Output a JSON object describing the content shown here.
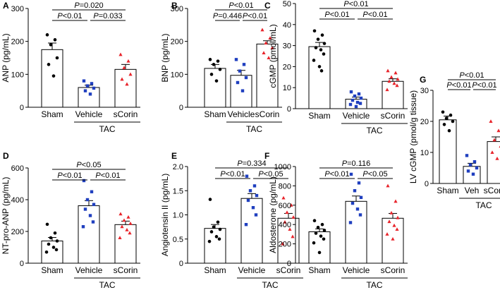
{
  "figure": {
    "panels": [
      "A",
      "B",
      "C",
      "D",
      "E",
      "F",
      "G"
    ],
    "groups": [
      "Sham",
      "Vehicle",
      "sCorin"
    ],
    "group_label": "TAC"
  },
  "chart_data": [
    {
      "id": "A",
      "type": "bar",
      "ylabel": "ANP (pg/mL)",
      "ylim": [
        0,
        300
      ],
      "yticks": [
        0,
        100,
        200,
        300
      ],
      "categories": [
        "Sham",
        "Vehicle",
        "sCorin"
      ],
      "group_label": "TAC",
      "series": [
        {
          "name": "Sham",
          "mean": 175,
          "sem": 20,
          "color": "#000000",
          "marker": "circle",
          "points": [
            220,
            205,
            190,
            150,
            130,
            95
          ]
        },
        {
          "name": "Vehicle",
          "mean": 60,
          "sem": 7,
          "color": "#1f3fbf",
          "marker": "square",
          "points": [
            80,
            72,
            65,
            58,
            50,
            40
          ]
        },
        {
          "name": "sCorin",
          "mean": 115,
          "sem": 15,
          "color": "#e8242b",
          "marker": "triangle",
          "points": [
            160,
            140,
            120,
            100,
            85,
            70
          ]
        }
      ],
      "comparisons": [
        {
          "from": 0,
          "to": 2,
          "label": "P=0.020"
        },
        {
          "from": 0,
          "to": 1,
          "label": "P<0.01"
        },
        {
          "from": 1,
          "to": 2,
          "label": "P=0.033"
        }
      ]
    },
    {
      "id": "B",
      "type": "bar",
      "ylabel": "BNP (pg/mL)",
      "ylim": [
        0,
        300
      ],
      "yticks": [
        0,
        100,
        200,
        300
      ],
      "categories": [
        "Sham",
        "Vehicle",
        "sCorin"
      ],
      "group_label": "TAC",
      "series": [
        {
          "name": "Sham",
          "mean": 118,
          "sem": 12,
          "color": "#000000",
          "marker": "circle",
          "points": [
            145,
            140,
            130,
            115,
            100,
            80
          ]
        },
        {
          "name": "Vehicle",
          "mean": 97,
          "sem": 15,
          "color": "#1f3fbf",
          "marker": "square",
          "points": [
            145,
            130,
            110,
            90,
            75,
            50
          ]
        },
        {
          "name": "sCorin",
          "mean": 192,
          "sem": 10,
          "color": "#e8242b",
          "marker": "triangle",
          "points": [
            235,
            210,
            195,
            180,
            165,
            150
          ]
        }
      ],
      "comparisons": [
        {
          "from": 0,
          "to": 2,
          "label": "P<0.01"
        },
        {
          "from": 0,
          "to": 1,
          "label": "P=0.446"
        },
        {
          "from": 1,
          "to": 2,
          "label": "P<0.01"
        }
      ]
    },
    {
      "id": "C",
      "type": "bar",
      "ylabel": "cGMP (pmol/mL)",
      "ylim": [
        0,
        50
      ],
      "yticks": [
        0,
        10,
        20,
        30,
        40,
        50
      ],
      "categories": [
        "Sham",
        "Vehicle",
        "sCorin"
      ],
      "group_label": "TAC",
      "series": [
        {
          "name": "Sham",
          "mean": 29.5,
          "sem": 2,
          "color": "#000000",
          "marker": "circle",
          "points": [
            37,
            35,
            33,
            31,
            29,
            28,
            26,
            23,
            20,
            18
          ]
        },
        {
          "name": "Vehicle",
          "mean": 4.5,
          "sem": 1,
          "color": "#1f3fbf",
          "marker": "square",
          "points": [
            8,
            7,
            6,
            5,
            4,
            3,
            2.5,
            2,
            1
          ]
        },
        {
          "name": "sCorin",
          "mean": 13,
          "sem": 1.2,
          "color": "#e8242b",
          "marker": "triangle",
          "points": [
            18,
            17,
            15,
            14,
            13,
            12,
            11,
            9
          ]
        }
      ],
      "comparisons": [
        {
          "from": 0,
          "to": 2,
          "label": "P<0.01"
        },
        {
          "from": 0,
          "to": 1,
          "label": "P<0.01"
        },
        {
          "from": 1,
          "to": 2,
          "label": "P<0.01"
        }
      ]
    },
    {
      "id": "D",
      "type": "bar",
      "ylabel": "NT-pro-ANP (pg/mL)",
      "ylim": [
        0,
        600
      ],
      "yticks": [
        0,
        200,
        400,
        600
      ],
      "categories": [
        "Sham",
        "Vehicle",
        "sCorin"
      ],
      "group_label": "TAC",
      "series": [
        {
          "name": "Sham",
          "mean": 140,
          "sem": 22,
          "color": "#000000",
          "marker": "circle",
          "points": [
            245,
            190,
            160,
            140,
            120,
            100,
            85,
            70
          ]
        },
        {
          "name": "Vehicle",
          "mean": 362,
          "sem": 32,
          "color": "#1f3fbf",
          "marker": "square",
          "points": [
            520,
            450,
            400,
            370,
            340,
            300,
            260,
            230
          ]
        },
        {
          "name": "sCorin",
          "mean": 243,
          "sem": 22,
          "color": "#e8242b",
          "marker": "triangle",
          "points": [
            310,
            290,
            270,
            250,
            230,
            210,
            190,
            160
          ]
        }
      ],
      "comparisons": [
        {
          "from": 0,
          "to": 2,
          "label": "P<0.05"
        },
        {
          "from": 0,
          "to": 1,
          "label": "P<0.01"
        },
        {
          "from": 1,
          "to": 2,
          "label": "P<0.01"
        }
      ]
    },
    {
      "id": "E",
      "type": "bar",
      "ylabel": "Angiotensin II (pg/mL)",
      "ylim": [
        0,
        2.0
      ],
      "yticks": [
        0,
        0.5,
        1.0,
        1.5,
        2.0
      ],
      "tick_labels": [
        "0",
        "0.5",
        "1.0",
        "1.5",
        "2.0"
      ],
      "categories": [
        "Sham",
        "Vehicle",
        "sCorin"
      ],
      "group_label": "TAC",
      "series": [
        {
          "name": "Sham",
          "mean": 0.72,
          "sem": 0.08,
          "color": "#000000",
          "marker": "circle",
          "points": [
            1.32,
            0.85,
            0.75,
            0.7,
            0.65,
            0.55,
            0.5,
            0.45
          ]
        },
        {
          "name": "Vehicle",
          "mean": 1.34,
          "sem": 0.1,
          "color": "#1f3fbf",
          "marker": "square",
          "points": [
            1.8,
            1.6,
            1.5,
            1.4,
            1.3,
            1.15,
            1.0,
            0.8
          ]
        },
        {
          "name": "sCorin",
          "mean": 0.93,
          "sem": 0.1,
          "color": "#e8242b",
          "marker": "triangle",
          "points": [
            1.35,
            1.2,
            1.05,
            0.95,
            0.85,
            0.7,
            0.55,
            0.4
          ]
        }
      ],
      "comparisons": [
        {
          "from": 0,
          "to": 2,
          "label": "P=0.334"
        },
        {
          "from": 0,
          "to": 1,
          "label": "P<0.01"
        },
        {
          "from": 1,
          "to": 2,
          "label": "P<0.05"
        }
      ]
    },
    {
      "id": "F",
      "type": "bar",
      "ylabel": "Aldosterone (pg/mL)",
      "ylim": [
        0,
        1000
      ],
      "yticks": [
        0,
        200,
        400,
        600,
        800,
        1000
      ],
      "categories": [
        "Sham",
        "Vehicle",
        "sCorin"
      ],
      "group_label": "TAC",
      "series": [
        {
          "name": "Sham",
          "mean": 325,
          "sem": 30,
          "color": "#000000",
          "marker": "circle",
          "points": [
            440,
            400,
            370,
            340,
            310,
            280,
            250,
            210,
            110
          ]
        },
        {
          "name": "Vehicle",
          "mean": 640,
          "sem": 55,
          "color": "#1f3fbf",
          "marker": "square",
          "points": [
            920,
            830,
            750,
            680,
            620,
            560,
            500,
            420
          ]
        },
        {
          "name": "sCorin",
          "mean": 465,
          "sem": 50,
          "color": "#e8242b",
          "marker": "triangle",
          "points": [
            800,
            640,
            520,
            470,
            430,
            390,
            350,
            300,
            250
          ]
        }
      ],
      "comparisons": [
        {
          "from": 0,
          "to": 2,
          "label": "P=0.116"
        },
        {
          "from": 0,
          "to": 1,
          "label": "P<0.01"
        },
        {
          "from": 1,
          "to": 2,
          "label": "P<0.05"
        }
      ]
    },
    {
      "id": "G",
      "type": "bar",
      "ylabel": "LV cGMP (pmol/g tissue)",
      "ylim": [
        0,
        30
      ],
      "yticks": [
        0,
        10,
        20,
        30
      ],
      "categories": [
        "Sham",
        "Veh",
        "sCorin"
      ],
      "group_label": "TAC",
      "series": [
        {
          "name": "Sham",
          "mean": 20.5,
          "sem": 1.2,
          "color": "#000000",
          "marker": "circle",
          "points": [
            23,
            22,
            21,
            20,
            19,
            17
          ]
        },
        {
          "name": "Veh",
          "mean": 5.5,
          "sem": 1,
          "color": "#1f3fbf",
          "marker": "square",
          "points": [
            9,
            7,
            6,
            5,
            4,
            3
          ]
        },
        {
          "name": "sCorin",
          "mean": 13.5,
          "sem": 1.5,
          "color": "#e8242b",
          "marker": "triangle",
          "points": [
            20,
            17,
            14,
            12,
            10,
            8
          ]
        }
      ],
      "comparisons": [
        {
          "from": 0,
          "to": 2,
          "label": "P<0.01"
        },
        {
          "from": 0,
          "to": 1,
          "label": "P<0.01"
        },
        {
          "from": 1,
          "to": 2,
          "label": "P<0.01"
        }
      ]
    }
  ]
}
